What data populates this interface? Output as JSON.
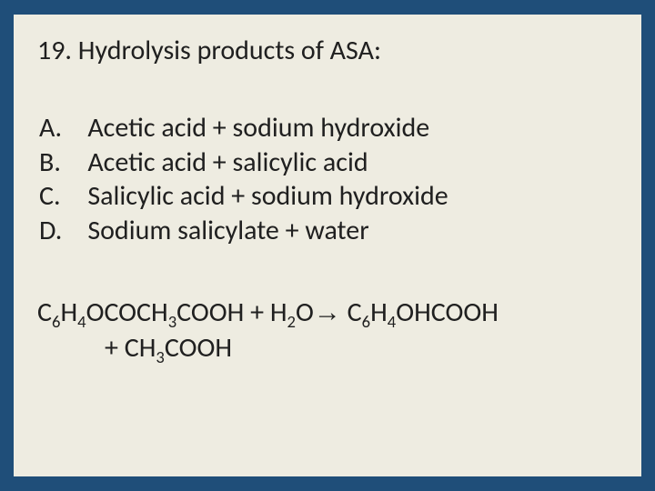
{
  "colors": {
    "page_background": "#1f4e79",
    "slide_background": "#eeece1",
    "text": "#202020"
  },
  "typography": {
    "font_family": "Calibri",
    "title_fontsize_pt": 30,
    "body_fontsize_pt": 30
  },
  "question": {
    "number": "19.",
    "text": "Hydrolysis products of ASA:"
  },
  "options": [
    {
      "letter": "A.",
      "text": "Acetic acid + sodium hydroxide"
    },
    {
      "letter": "B.",
      "text": "Acetic acid + salicylic acid"
    },
    {
      "letter": "C.",
      "text": "Salicylic acid + sodium hydroxide"
    },
    {
      "letter": "D.",
      "text": "Sodium salicylate + water"
    }
  ],
  "equation": {
    "segments": [
      {
        "t": "C"
      },
      {
        "t": "6",
        "sub": true
      },
      {
        "t": "H"
      },
      {
        "t": "4",
        "sub": true
      },
      {
        "t": "OCOCH"
      },
      {
        "t": "3",
        "sub": true
      },
      {
        "t": "COOH + H"
      },
      {
        "t": "2",
        "sub": true
      },
      {
        "t": "O"
      },
      {
        "t": "→",
        "arrow": true
      },
      {
        "t": " C"
      },
      {
        "t": "6",
        "sub": true
      },
      {
        "t": "H"
      },
      {
        "t": "4",
        "sub": true
      },
      {
        "t": "OHCOOH"
      }
    ],
    "cont_segments": [
      {
        "t": "+ CH"
      },
      {
        "t": "3",
        "sub": true
      },
      {
        "t": "COOH"
      }
    ]
  }
}
